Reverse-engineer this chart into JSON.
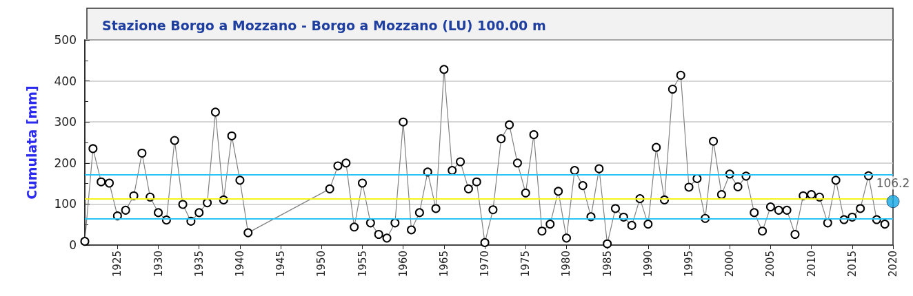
{
  "chart_data": {
    "type": "line",
    "title": "Stazione Borgo a Mozzano - Borgo a Mozzano (LU) 100.00 m",
    "ylabel": "Cumulata [mm]",
    "marker": "circle",
    "grid": "y",
    "xlim": [
      1921,
      2020
    ],
    "xticks": [
      1925,
      1930,
      1935,
      1940,
      1945,
      1950,
      1955,
      1960,
      1965,
      1970,
      1975,
      1980,
      1985,
      1990,
      1995,
      2000,
      2005,
      2010,
      2015,
      2020
    ],
    "ylim": [
      0,
      500
    ],
    "yticks": [
      0,
      100,
      200,
      300,
      400,
      500
    ],
    "ref_lines": [
      {
        "axis": "y",
        "value": 172,
        "color": "#29c4f6"
      },
      {
        "axis": "y",
        "value": 113,
        "color": "#f5f51a"
      },
      {
        "axis": "y",
        "value": 65,
        "color": "#29c4f6"
      }
    ],
    "series": [
      {
        "color": "#808080",
        "x": [
          1921,
          1922,
          1923,
          1924,
          1925,
          1926,
          1927,
          1928,
          1929,
          1930,
          1931,
          1932,
          1933,
          1934,
          1935,
          1936,
          1937,
          1938,
          1939,
          1940,
          1941,
          1951,
          1952,
          1953,
          1954,
          1955,
          1956,
          1957,
          1958,
          1959,
          1960,
          1961,
          1962,
          1963,
          1964,
          1965,
          1966,
          1967,
          1968,
          1969,
          1970,
          1971,
          1972,
          1973,
          1974,
          1975,
          1976,
          1977,
          1978,
          1979,
          1980,
          1981,
          1982,
          1983,
          1984,
          1985,
          1986,
          1987,
          1988,
          1989,
          1990,
          1991,
          1992,
          1993,
          1994,
          1995,
          1996,
          1997,
          1998,
          1999,
          2000,
          2001,
          2002,
          2003,
          2004,
          2005,
          2006,
          2007,
          2008,
          2009,
          2010,
          2011,
          2012,
          2013,
          2014,
          2015,
          2016,
          2017,
          2018,
          2019
        ],
        "values": [
          9,
          235,
          154,
          151,
          71,
          85,
          120,
          224,
          117,
          79,
          61,
          255,
          99,
          58,
          79,
          103,
          324,
          110,
          266,
          158,
          30,
          137,
          193,
          200,
          44,
          151,
          54,
          26,
          17,
          54,
          300,
          37,
          79,
          178,
          89,
          428,
          182,
          203,
          137,
          154,
          6,
          86,
          259,
          293,
          200,
          127,
          269,
          34,
          51,
          131,
          17,
          182,
          145,
          69,
          186,
          3,
          89,
          68,
          48,
          113,
          51,
          238,
          110,
          380,
          414,
          141,
          162,
          65,
          253,
          123,
          173,
          142,
          168,
          79,
          34,
          93,
          85,
          85,
          26,
          120,
          123,
          117,
          54,
          158,
          62,
          68,
          89,
          169,
          62,
          51
        ]
      },
      {
        "type": "scatter",
        "color": "#14a8e6",
        "x": [
          2020
        ],
        "values": [
          106.2
        ],
        "value_labels": [
          "106.2"
        ]
      }
    ]
  }
}
